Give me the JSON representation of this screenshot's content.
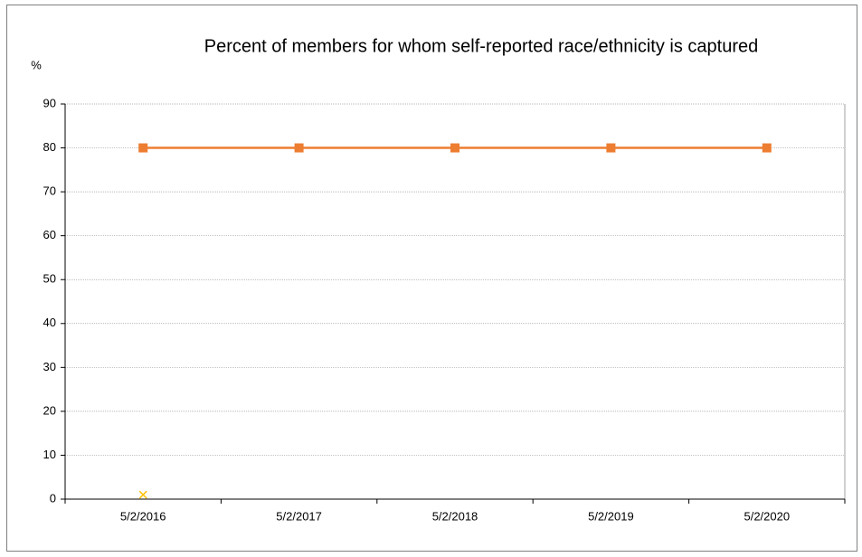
{
  "chart_data": {
    "type": "line",
    "title": "Percent of members for whom self-reported race/ethnicity is captured",
    "y_label": "%",
    "categories": [
      "5/2/2016",
      "5/2/2017",
      "5/2/2018",
      "5/2/2019",
      "5/2/2020"
    ],
    "series": [
      {
        "color": "#ed7d31",
        "marker": "square",
        "values": [
          80,
          80,
          80,
          80,
          80
        ]
      },
      {
        "color": "#ffc000",
        "marker": "x",
        "values": [
          1,
          null,
          null,
          null,
          null
        ]
      }
    ],
    "ylim": [
      0,
      90
    ],
    "yticks": [
      0,
      10,
      20,
      30,
      40,
      50,
      60,
      70,
      80,
      90
    ],
    "grid": true
  }
}
